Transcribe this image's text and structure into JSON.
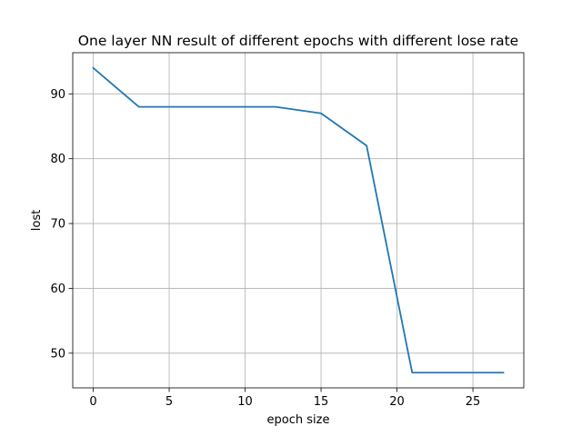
{
  "chart_data": {
    "type": "line",
    "title": "One layer NN result of different epochs with different lose rate",
    "xlabel": "epoch size",
    "ylabel": "lost",
    "xlim": [
      -1.35,
      28.35
    ],
    "ylim": [
      44.65,
      96.35
    ],
    "xticks": [
      0,
      5,
      10,
      15,
      20,
      25
    ],
    "yticks": [
      50,
      60,
      70,
      80,
      90
    ],
    "grid": true,
    "legend": "none",
    "series": [
      {
        "color": "#1f77b4",
        "x": [
          0,
          3,
          6,
          9,
          12,
          15,
          18,
          21,
          24,
          27
        ],
        "y": [
          94,
          88,
          88,
          88,
          88,
          87,
          82,
          47,
          47,
          47
        ]
      }
    ]
  }
}
